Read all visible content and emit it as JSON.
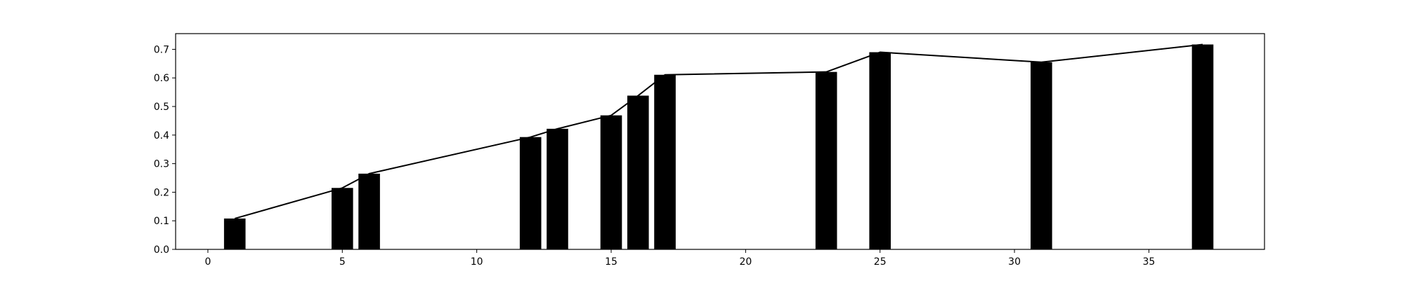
{
  "chart_data": {
    "type": "bar",
    "title": "",
    "xlabel": "",
    "ylabel": "",
    "xlim": [
      -1.2,
      39.3
    ],
    "ylim": [
      0,
      0.755
    ],
    "grid": false,
    "legend": "none",
    "x_ticks": [
      0,
      5,
      10,
      15,
      20,
      25,
      30,
      35
    ],
    "x_tick_labels": [
      "0",
      "5",
      "10",
      "15",
      "20",
      "25",
      "30",
      "35"
    ],
    "y_ticks": [
      0.0,
      0.1,
      0.2,
      0.3,
      0.4,
      0.5,
      0.6,
      0.7
    ],
    "y_tick_labels": [
      "0.0",
      "0.1",
      "0.2",
      "0.3",
      "0.4",
      "0.5",
      "0.6",
      "0.7"
    ],
    "bar_color": "#000000",
    "line_color": "#000000",
    "series": [
      {
        "type": "bar",
        "x": [
          1,
          5,
          6,
          12,
          13,
          15,
          16,
          17,
          23,
          25,
          31,
          37
        ],
        "values": [
          0.108,
          0.215,
          0.265,
          0.393,
          0.422,
          0.469,
          0.538,
          0.611,
          0.621,
          0.69,
          0.655,
          0.717
        ],
        "bar_width": 0.8
      },
      {
        "type": "line",
        "x": [
          1,
          5,
          6,
          12,
          13,
          15,
          16,
          17,
          23,
          25,
          31,
          37
        ],
        "values": [
          0.108,
          0.215,
          0.265,
          0.393,
          0.422,
          0.469,
          0.538,
          0.611,
          0.621,
          0.69,
          0.655,
          0.717
        ]
      }
    ]
  }
}
